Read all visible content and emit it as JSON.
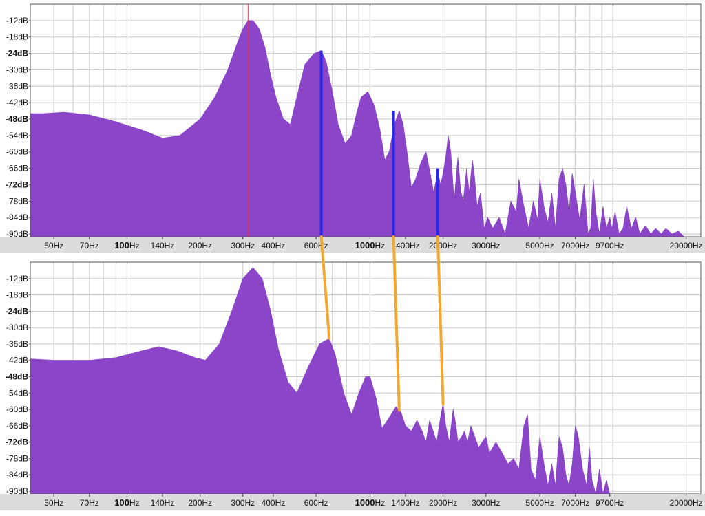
{
  "colors": {
    "fill": "#8a45c8",
    "peak_line": "#e0305a",
    "harmonic_marker": "#2a2ae8",
    "connector": "#f0a830",
    "grid": "#c6c6c6",
    "grid_major": "#8c8c8c",
    "panel_bg": "#ffffff",
    "axis_strip": "#dcdcdc"
  },
  "chart_data": [
    {
      "type": "area",
      "title": "",
      "xlabel": "",
      "ylabel": "",
      "x_scale": "log",
      "xlim": [
        40,
        23000
      ],
      "ylim": [
        -91,
        -6
      ],
      "grid": true,
      "legend": "none",
      "x_ticks": [
        {
          "value": 50,
          "label": "50Hz"
        },
        {
          "value": 70,
          "label": "70Hz"
        },
        {
          "value": 100,
          "label": "100",
          "suffix": "Hz",
          "bold": true
        },
        {
          "value": 140,
          "label": "140Hz"
        },
        {
          "value": 200,
          "label": "200Hz"
        },
        {
          "value": 300,
          "label": "300Hz"
        },
        {
          "value": 400,
          "label": "400Hz"
        },
        {
          "value": 600,
          "label": "600Hz"
        },
        {
          "value": 1000,
          "label": "1000",
          "suffix": "Hz",
          "bold": true
        },
        {
          "value": 1400,
          "label": "1400Hz"
        },
        {
          "value": 2000,
          "label": "2000Hz"
        },
        {
          "value": 3000,
          "label": "3000Hz"
        },
        {
          "value": 5000,
          "label": "5000Hz"
        },
        {
          "value": 7000,
          "label": "7000Hz"
        },
        {
          "value": 9700,
          "label": "9700Hz"
        },
        {
          "value": 20000,
          "label": "20000Hz"
        }
      ],
      "y_ticks": [
        {
          "value": -12,
          "label": "-12dB"
        },
        {
          "value": -18,
          "label": "-18dB"
        },
        {
          "value": -24,
          "label": "-24dB",
          "bold": true
        },
        {
          "value": -30,
          "label": "-30dB"
        },
        {
          "value": -36,
          "label": "-36dB"
        },
        {
          "value": -42,
          "label": "-42dB"
        },
        {
          "value": -48,
          "label": "-48dB",
          "bold": true
        },
        {
          "value": -54,
          "label": "-54dB"
        },
        {
          "value": -60,
          "label": "-60dB"
        },
        {
          "value": -66,
          "label": "-66dB"
        },
        {
          "value": -72,
          "label": "-72dB",
          "bold": true
        },
        {
          "value": -78,
          "label": "-78dB"
        },
        {
          "value": -84,
          "label": "-84dB"
        },
        {
          "value": -90,
          "label": "-90dB"
        }
      ],
      "peak_marker_hz": 315,
      "harmonic_markers": [
        {
          "x": 630,
          "y": -23
        },
        {
          "x": 1250,
          "y": -45
        },
        {
          "x": 1900,
          "y": -66
        }
      ],
      "series": [
        {
          "x": [
            40,
            45,
            55,
            70,
            90,
            115,
            140,
            165,
            200,
            230,
            260,
            285,
            300,
            315,
            330,
            350,
            370,
            390,
            410,
            440,
            470,
            500,
            540,
            590,
            630,
            660,
            700,
            740,
            790,
            840,
            880,
            920,
            980,
            1040,
            1100,
            1150,
            1200,
            1260,
            1320,
            1370,
            1420,
            1480,
            1540,
            1620,
            1700,
            1770,
            1830,
            1900,
            1950,
            2000,
            2050,
            2100,
            2150,
            2220,
            2260,
            2300,
            2360,
            2420,
            2500,
            2560,
            2640,
            2700,
            2760,
            2850,
            2950,
            3050,
            3200,
            3400,
            3600,
            3800,
            4000,
            4100,
            4300,
            4500,
            4700,
            4900,
            5000,
            5200,
            5400,
            5600,
            5800,
            6000,
            6200,
            6400,
            6600,
            6800,
            7000,
            7300,
            7600,
            7900,
            8100,
            8300,
            8500,
            8800,
            9100,
            9400,
            9700,
            9900,
            10200,
            10600,
            11000,
            11400,
            11900,
            12400,
            12900,
            13600,
            14300,
            15000,
            15800,
            16500,
            17500,
            18600,
            19600,
            20500,
            22000,
            23000
          ],
          "y": [
            -46,
            -46,
            -45.5,
            -46.5,
            -49,
            -52,
            -55,
            -54,
            -48,
            -40,
            -30,
            -20,
            -15,
            -12,
            -12,
            -15,
            -22,
            -32,
            -40,
            -48,
            -50,
            -40,
            -28,
            -24,
            -23,
            -27,
            -38,
            -50,
            -57,
            -54,
            -46,
            -40,
            -38,
            -43,
            -52,
            -63,
            -60,
            -50,
            -45,
            -50,
            -60,
            -73,
            -70,
            -64,
            -60,
            -68,
            -75,
            -67,
            -72,
            -68,
            -62,
            -54,
            -60,
            -78,
            -70,
            -62,
            -74,
            -78,
            -66,
            -75,
            -63,
            -70,
            -80,
            -75,
            -88,
            -84,
            -88,
            -84,
            -90,
            -78,
            -82,
            -70,
            -80,
            -88,
            -78,
            -85,
            -70,
            -80,
            -86,
            -75,
            -88,
            -70,
            -66,
            -72,
            -82,
            -68,
            -75,
            -85,
            -72,
            -90,
            -88,
            -70,
            -82,
            -90,
            -80,
            -88,
            -84,
            -88,
            -82,
            -90,
            -88,
            -80,
            -88,
            -84,
            -90,
            -87,
            -90,
            -88,
            -90,
            -88,
            -90,
            -89,
            -91,
            -91,
            -91,
            -91
          ]
        }
      ]
    },
    {
      "type": "area",
      "title": "",
      "xlabel": "",
      "ylabel": "",
      "x_scale": "log",
      "xlim": [
        40,
        23000
      ],
      "ylim": [
        -91,
        -6
      ],
      "grid": true,
      "legend": "none",
      "x_ticks": [
        {
          "value": 50,
          "label": "50Hz"
        },
        {
          "value": 70,
          "label": "70Hz"
        },
        {
          "value": 100,
          "label": "100",
          "suffix": "Hz",
          "bold": true
        },
        {
          "value": 140,
          "label": "140Hz"
        },
        {
          "value": 200,
          "label": "200Hz"
        },
        {
          "value": 300,
          "label": "300Hz"
        },
        {
          "value": 400,
          "label": "400Hz"
        },
        {
          "value": 600,
          "label": "600Hz"
        },
        {
          "value": 1000,
          "label": "1000",
          "suffix": "Hz",
          "bold": true
        },
        {
          "value": 1400,
          "label": "1400Hz"
        },
        {
          "value": 2000,
          "label": "2000Hz"
        },
        {
          "value": 3000,
          "label": "3000Hz"
        },
        {
          "value": 5000,
          "label": "5000Hz"
        },
        {
          "value": 7000,
          "label": "7000Hz"
        },
        {
          "value": 9700,
          "label": "9700Hz"
        },
        {
          "value": 20000,
          "label": "20000Hz"
        }
      ],
      "y_ticks": [
        {
          "value": -12,
          "label": "-12dB"
        },
        {
          "value": -18,
          "label": "-18dB"
        },
        {
          "value": -24,
          "label": "-24dB",
          "bold": true
        },
        {
          "value": -30,
          "label": "-30dB"
        },
        {
          "value": -36,
          "label": "-36dB"
        },
        {
          "value": -42,
          "label": "-42dB"
        },
        {
          "value": -48,
          "label": "-48dB",
          "bold": true
        },
        {
          "value": -54,
          "label": "-54dB"
        },
        {
          "value": -60,
          "label": "-60dB"
        },
        {
          "value": -66,
          "label": "-66dB"
        },
        {
          "value": -72,
          "label": "-72dB",
          "bold": true
        },
        {
          "value": -78,
          "label": "-78dB"
        },
        {
          "value": -84,
          "label": "-84dB"
        },
        {
          "value": -90,
          "label": "-90dB"
        }
      ],
      "peak_marker_hz": 330,
      "harmonic_markers": [],
      "series": [
        {
          "x": [
            40,
            50,
            70,
            90,
            115,
            135,
            160,
            190,
            210,
            240,
            270,
            300,
            330,
            360,
            390,
            420,
            460,
            500,
            560,
            620,
            680,
            720,
            780,
            840,
            900,
            960,
            1000,
            1060,
            1120,
            1200,
            1280,
            1340,
            1400,
            1480,
            1560,
            1640,
            1700,
            1760,
            1820,
            1880,
            1960,
            2000,
            2050,
            2120,
            2200,
            2260,
            2300,
            2380,
            2450,
            2520,
            2600,
            2700,
            2800,
            3000,
            3100,
            3300,
            3500,
            3700,
            3900,
            4100,
            4300,
            4450,
            4600,
            4800,
            5000,
            5200,
            5400,
            5600,
            5800,
            6000,
            6200,
            6400,
            6600,
            6800,
            7000,
            7200,
            7500,
            7800,
            8000,
            8200,
            8500,
            8800,
            9100,
            9400,
            9700,
            10000,
            10500,
            11000,
            12000,
            14000,
            17000,
            23000
          ],
          "y": [
            -41.5,
            -42,
            -42,
            -41,
            -38.5,
            -37,
            -38.5,
            -41,
            -42,
            -36,
            -24,
            -12,
            -8,
            -12,
            -24,
            -38,
            -50,
            -54,
            -44,
            -36,
            -34,
            -40,
            -54,
            -62,
            -54,
            -48,
            -48,
            -56,
            -67,
            -63,
            -59,
            -61,
            -66,
            -68,
            -64,
            -68,
            -72,
            -64,
            -68,
            -72,
            -62,
            -58,
            -66,
            -72,
            -60,
            -66,
            -72,
            -70,
            -68,
            -72,
            -66,
            -70,
            -74,
            -70,
            -76,
            -72,
            -76,
            -80,
            -78,
            -82,
            -66,
            -62,
            -82,
            -86,
            -70,
            -80,
            -88,
            -80,
            -88,
            -70,
            -74,
            -84,
            -88,
            -80,
            -66,
            -70,
            -82,
            -88,
            -74,
            -86,
            -91,
            -82,
            -91,
            -86,
            -91,
            -91,
            -91,
            -91,
            -91,
            -91,
            -91,
            -91
          ]
        }
      ]
    }
  ]
}
